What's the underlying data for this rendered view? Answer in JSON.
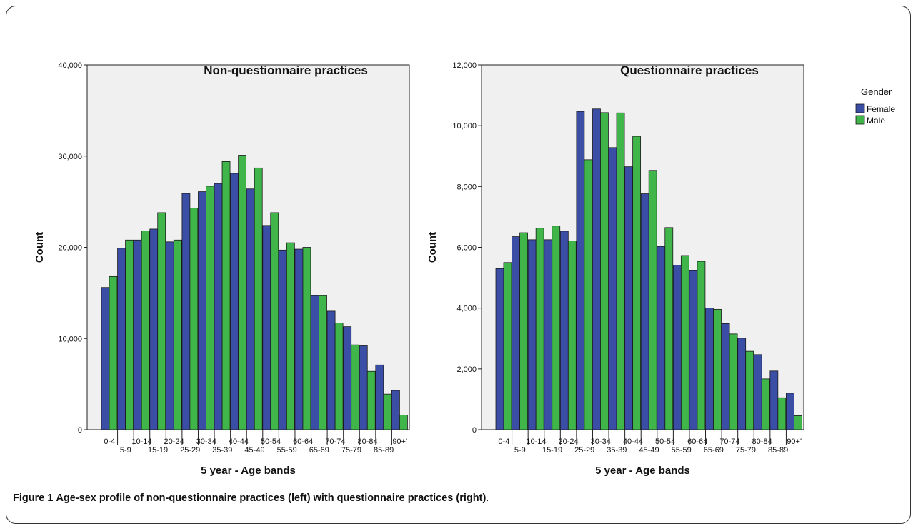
{
  "caption": {
    "label": "Figure 1",
    "text": "Age-sex profile of non-questionnaire practices (left) with questionnaire practices (right)",
    "end": "."
  },
  "legend": {
    "title": "Gender",
    "items": [
      {
        "name": "Female",
        "color": "#3b4ea6"
      },
      {
        "name": "Male",
        "color": "#3fb54a"
      }
    ]
  },
  "chart_data": [
    {
      "type": "bar",
      "title": "Non-questionnaire practices",
      "xlabel": "5 year - Age bands",
      "ylabel": "Count",
      "ylim": [
        0,
        40000
      ],
      "yticks": [
        "0",
        "10,000",
        "20,000",
        "30,000",
        "40,000"
      ],
      "ytick_values": [
        0,
        10000,
        20000,
        30000,
        40000
      ],
      "categories": [
        "0-4",
        "5-9",
        "10-14",
        "15-19",
        "20-24",
        "25-29",
        "30-34",
        "35-39",
        "40-44",
        "45-49",
        "50-54",
        "55-59",
        "60-64",
        "65-69",
        "70-74",
        "75-79",
        "80-84",
        "85-89",
        "90+'"
      ],
      "series": [
        {
          "name": "Female",
          "values": [
            15600,
            19900,
            20800,
            22000,
            20600,
            25900,
            26100,
            27000,
            28100,
            26400,
            22400,
            19700,
            19800,
            14700,
            13000,
            11300,
            9200,
            7100,
            4300
          ]
        },
        {
          "name": "Male",
          "values": [
            16800,
            20800,
            21800,
            23800,
            20800,
            24300,
            26700,
            29400,
            30100,
            28700,
            23800,
            20500,
            20000,
            14700,
            11700,
            9300,
            6400,
            3900,
            1600
          ]
        }
      ],
      "grid": false,
      "plot_background": "#f0f0f0"
    },
    {
      "type": "bar",
      "title": "Questionnaire practices",
      "xlabel": "5 year - Age bands",
      "ylabel": "Count",
      "ylim": [
        0,
        12000
      ],
      "yticks": [
        "0",
        "2,000",
        "4,000",
        "6,000",
        "8,000",
        "10,000",
        "12,000"
      ],
      "ytick_values": [
        0,
        2000,
        4000,
        6000,
        8000,
        10000,
        12000
      ],
      "categories": [
        "0-4",
        "5-9",
        "10-14",
        "15-19",
        "20-24",
        "25-29",
        "30-34",
        "35-39",
        "40-44",
        "45-49",
        "50-54",
        "55-59",
        "60-64",
        "65-69",
        "70-74",
        "75-79",
        "80-84",
        "85-89",
        "90+'"
      ],
      "series": [
        {
          "name": "Female",
          "values": [
            5300,
            6350,
            6250,
            6250,
            6530,
            10470,
            10550,
            9280,
            8650,
            7760,
            6030,
            5410,
            5230,
            4000,
            3490,
            3010,
            2470,
            1930,
            1200
          ]
        },
        {
          "name": "Male",
          "values": [
            5500,
            6480,
            6630,
            6700,
            6210,
            8880,
            10430,
            10420,
            9650,
            8530,
            6650,
            5730,
            5540,
            3960,
            3150,
            2580,
            1670,
            1050,
            460
          ]
        }
      ],
      "grid": false,
      "plot_background": "#f0f0f0"
    }
  ]
}
